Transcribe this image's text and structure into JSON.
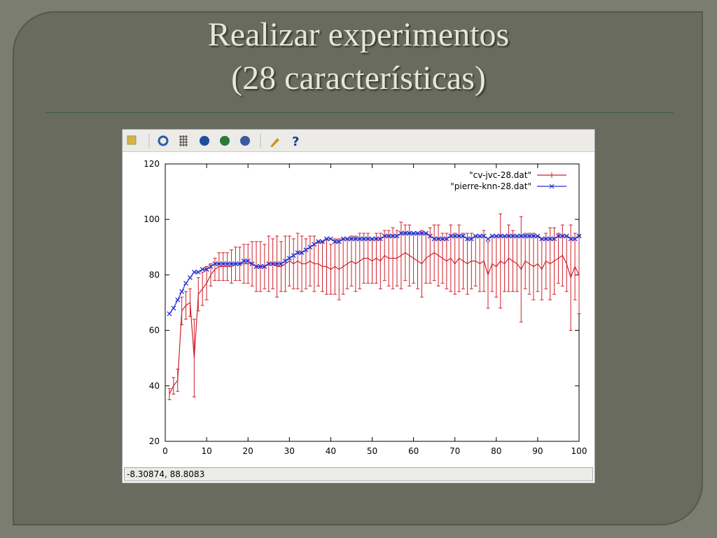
{
  "slide": {
    "title_line1": "Realizar experimentos",
    "title_line2": "(28 características)"
  },
  "status": "-8.30874,  88.8083",
  "chart_data": {
    "type": "line",
    "x": [
      1,
      2,
      3,
      4,
      5,
      6,
      7,
      8,
      9,
      10,
      11,
      12,
      13,
      14,
      15,
      16,
      17,
      18,
      19,
      20,
      21,
      22,
      23,
      24,
      25,
      26,
      27,
      28,
      29,
      30,
      31,
      32,
      33,
      34,
      35,
      36,
      37,
      38,
      39,
      40,
      41,
      42,
      43,
      44,
      45,
      46,
      47,
      48,
      49,
      50,
      51,
      52,
      53,
      54,
      55,
      56,
      57,
      58,
      59,
      60,
      61,
      62,
      63,
      64,
      65,
      66,
      67,
      68,
      69,
      70,
      71,
      72,
      73,
      74,
      75,
      76,
      77,
      78,
      79,
      80,
      81,
      82,
      83,
      84,
      85,
      86,
      87,
      88,
      89,
      90,
      91,
      92,
      93,
      94,
      95,
      96,
      97,
      98,
      99,
      100
    ],
    "series": [
      {
        "name": "\"cv-jvc-28.dat\"",
        "color": "#d0202a",
        "values": [
          37,
          40,
          42,
          67,
          69,
          70,
          50,
          73,
          75,
          77,
          80,
          82,
          83,
          83,
          83,
          83,
          84,
          84,
          84,
          84,
          84,
          83,
          83,
          83,
          84,
          84,
          83,
          83,
          84,
          85,
          84,
          85,
          84,
          84,
          85,
          84,
          84,
          83,
          83,
          82,
          83,
          82,
          83,
          84,
          85,
          84,
          85,
          86,
          86,
          85,
          86,
          85,
          87,
          86,
          86,
          86,
          87,
          88,
          87,
          86,
          85,
          84,
          86,
          87,
          88,
          87,
          86,
          85,
          86,
          84,
          86,
          85,
          84,
          85,
          85,
          84,
          85,
          80,
          84,
          83,
          85,
          84,
          86,
          85,
          84,
          82,
          85,
          84,
          83,
          84,
          82,
          85,
          84,
          85,
          86,
          87,
          84,
          79,
          83,
          80
        ],
        "errors": [
          2,
          3,
          4,
          5,
          5,
          5,
          14,
          6,
          6,
          6,
          4,
          4,
          5,
          5,
          5,
          6,
          6,
          6,
          7,
          7,
          8,
          9,
          9,
          8,
          10,
          9,
          11,
          9,
          10,
          9,
          9,
          10,
          10,
          9,
          9,
          10,
          8,
          9,
          10,
          9,
          10,
          11,
          10,
          9,
          9,
          10,
          10,
          9,
          9,
          8,
          9,
          10,
          9,
          10,
          11,
          10,
          12,
          10,
          11,
          9,
          10,
          12,
          9,
          10,
          10,
          11,
          9,
          10,
          12,
          11,
          12,
          10,
          11,
          10,
          9,
          10,
          11,
          12,
          10,
          11,
          17,
          10,
          12,
          11,
          10,
          19,
          10,
          11,
          12,
          10,
          11,
          10,
          13,
          12,
          9,
          11,
          10,
          19,
          12,
          14
        ]
      },
      {
        "name": "\"pierre-knn-28.dat\"",
        "color": "#2030d0",
        "values": [
          66,
          68,
          71,
          74,
          77,
          79,
          81,
          81,
          82,
          82,
          83,
          84,
          84,
          84,
          84,
          84,
          84,
          84,
          85,
          85,
          84,
          83,
          83,
          83,
          84,
          84,
          84,
          84,
          85,
          86,
          87,
          88,
          88,
          89,
          90,
          91,
          92,
          92,
          93,
          93,
          92,
          92,
          93,
          93,
          93,
          93,
          93,
          93,
          93,
          93,
          93,
          93,
          94,
          94,
          94,
          94,
          95,
          95,
          95,
          95,
          95,
          95,
          95,
          94,
          93,
          93,
          93,
          93,
          94,
          94,
          94,
          94,
          93,
          93,
          94,
          94,
          94,
          93,
          94,
          94,
          94,
          94,
          94,
          94,
          94,
          94,
          94,
          94,
          94,
          94,
          93,
          93,
          93,
          93,
          94,
          94,
          94,
          93,
          93,
          94
        ]
      }
    ],
    "xlim": [
      0,
      100
    ],
    "xticks": [
      0,
      10,
      20,
      30,
      40,
      50,
      60,
      70,
      80,
      90,
      100
    ],
    "ylim": [
      20,
      120
    ],
    "yticks": [
      20,
      40,
      60,
      80,
      100,
      120
    ],
    "legend": "upper right"
  }
}
